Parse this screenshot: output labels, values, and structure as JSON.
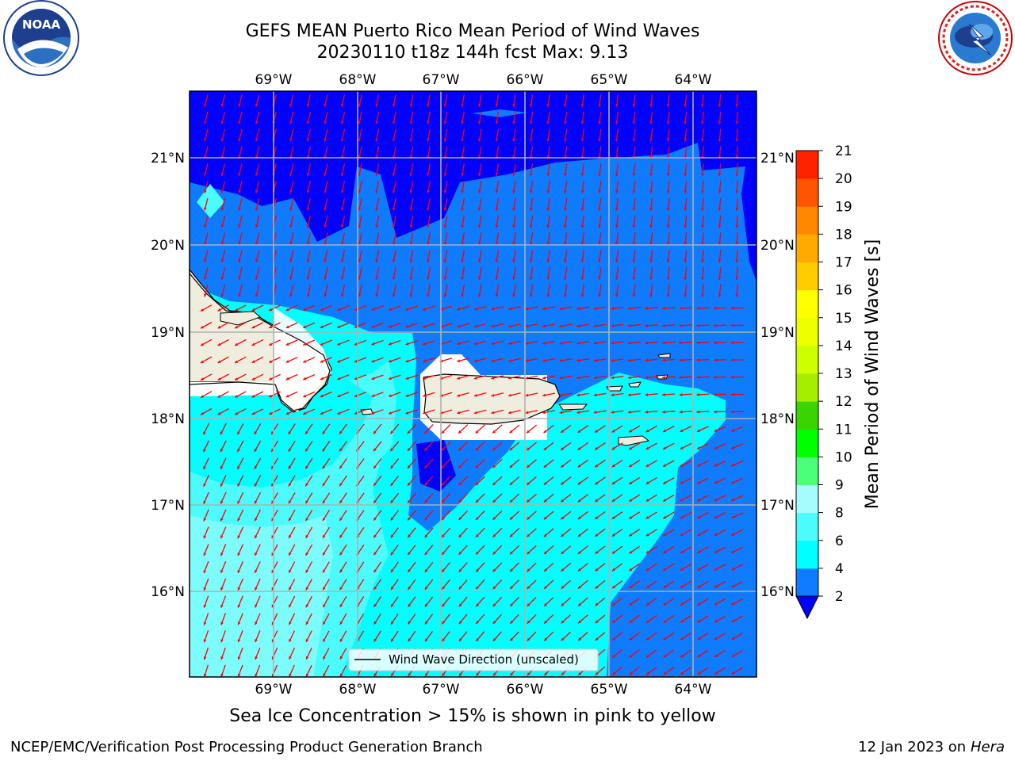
{
  "title": {
    "line1": "GEFS MEAN Puerto Rico Mean Period of Wind Waves",
    "line2": "20230110 t18z 144h fcst   Max: 9.13"
  },
  "logos": {
    "left": {
      "icon": "noaa-logo",
      "text": "NOAA",
      "ring_text": "NATIONAL OCEANIC AND ATMOSPHERIC ADMINISTRATION · U.S. DEPARTMENT OF COMMERCE"
    },
    "right": {
      "icon": "nws-logo",
      "ring_text": "NATIONAL WEATHER SERVICE"
    }
  },
  "map": {
    "lon_ticks": [
      "69°W",
      "68°W",
      "67°W",
      "66°W",
      "65°W",
      "64°W"
    ],
    "lat_ticks": [
      "21°N",
      "20°N",
      "19°N",
      "18°N",
      "17°N",
      "16°N"
    ],
    "legend": "Wind Wave Direction (unscaled)",
    "arrow_color": "#ff0000",
    "land_color": "#efedde"
  },
  "colorbar": {
    "label": "Mean Period of Wind Waves [s]",
    "ticks": [
      "2",
      "4",
      "6",
      "8",
      "9",
      "10",
      "11",
      "12",
      "13",
      "14",
      "15",
      "16",
      "17",
      "18",
      "19",
      "20",
      "21"
    ],
    "colors": [
      "#0f7bff",
      "#00ffff",
      "#4cfcfc",
      "#a6fcfc",
      "#4cff7b",
      "#00ff00",
      "#3ad400",
      "#a6ee00",
      "#ccff00",
      "#eeff00",
      "#ffff00",
      "#ffcc00",
      "#ffaa00",
      "#ff8800",
      "#ff5500",
      "#ff2200"
    ],
    "under_color": "#0000ff"
  },
  "footer": {
    "note": "Sea Ice Concentration > 15% is shown in pink to yellow",
    "left": "NCEP/EMC/Verification Post Processing Product Generation Branch",
    "right_date": "12 Jan 2023 on ",
    "right_host": "Hera"
  }
}
